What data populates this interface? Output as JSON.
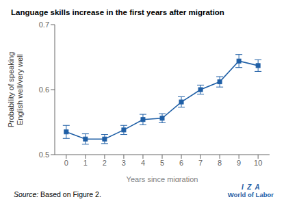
{
  "chart_data": {
    "type": "line",
    "title": "Language skills increase in the first years after migration",
    "xlabel": "Years since migration",
    "ylabel": "Probability of speaking\nEnglish well/very well",
    "annotations": [
      "Source:",
      "Based on Figure 2.",
      "I  Z  A",
      "World of Labor"
    ],
    "x": [
      0,
      1,
      2,
      3,
      4,
      5,
      6,
      7,
      8,
      9,
      10
    ],
    "series": [
      {
        "name": "Probability of speaking English well/very well",
        "color": "#1f5fa6",
        "marker": "square",
        "values": [
          0.535,
          0.524,
          0.524,
          0.538,
          0.554,
          0.556,
          0.581,
          0.6,
          0.612,
          0.644,
          0.637
        ],
        "yerr": [
          0.01,
          0.008,
          0.007,
          0.007,
          0.008,
          0.007,
          0.008,
          0.007,
          0.008,
          0.01,
          0.009
        ]
      }
    ],
    "xlim": [
      -0.6,
      10.6
    ],
    "xticks": [
      0,
      1,
      2,
      3,
      4,
      5,
      6,
      7,
      8,
      9,
      10
    ],
    "ylim": [
      0.5,
      0.7
    ],
    "yticks": [
      0.5,
      0.6,
      0.7
    ],
    "grid": false
  }
}
